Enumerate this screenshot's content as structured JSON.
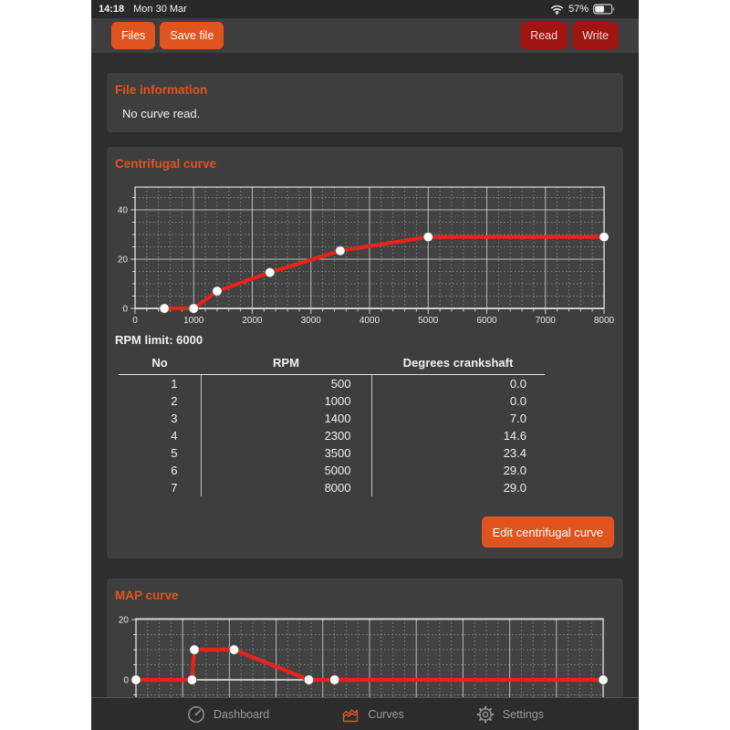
{
  "status_bar": {
    "time": "14:18",
    "date": "Mon 30 Mar",
    "battery_percent": "57%"
  },
  "toolbar": {
    "files_label": "Files",
    "save_file_label": "Save file",
    "read_label": "Read",
    "write_label": "Write"
  },
  "colors": {
    "accent_orange": "#e05420",
    "dark_red_button": "#9e1511",
    "curve_red": "#e8231a",
    "panel_bg": "#3e3e3e",
    "app_bg": "#2e2e2e"
  },
  "file_information": {
    "title": "File information",
    "message": "No curve read."
  },
  "centrifugal": {
    "title": "Centrifugal curve",
    "rpm_limit": "RPM limit: 6000",
    "edit_button_label": "Edit centrifugal curve",
    "table": {
      "headers": [
        "No",
        "RPM",
        "Degrees crankshaft"
      ],
      "rows": [
        [
          "1",
          "500",
          "0.0"
        ],
        [
          "2",
          "1000",
          "0.0"
        ],
        [
          "3",
          "1400",
          "7.0"
        ],
        [
          "4",
          "2300",
          "14.6"
        ],
        [
          "5",
          "3500",
          "23.4"
        ],
        [
          "6",
          "5000",
          "29.0"
        ],
        [
          "7",
          "8000",
          "29.0"
        ]
      ]
    },
    "chart_data": {
      "type": "line",
      "title": "Centrifugal curve",
      "x": [
        500,
        1000,
        1400,
        2300,
        3500,
        5000,
        8000
      ],
      "values": [
        0.0,
        0.0,
        7.0,
        14.6,
        23.4,
        29.0,
        29.0
      ],
      "xlim": [
        0,
        8000
      ],
      "ylim": [
        0,
        50
      ],
      "x_ticks": [
        0,
        1000,
        2000,
        3000,
        4000,
        5000,
        6000,
        7000,
        8000
      ],
      "y_ticks": [
        0,
        20,
        40
      ],
      "x_major_step": 1000,
      "x_minor_step": 200,
      "y_major_step": 20,
      "y_minor_step": 5,
      "grid": true,
      "legend": false,
      "line_color": "#e8231a",
      "marker_color": "#ffffff"
    }
  },
  "map": {
    "title": "MAP curve",
    "chart_data": {
      "type": "line",
      "title": "MAP curve",
      "x": [
        0,
        120,
        125,
        210,
        370,
        425,
        1000
      ],
      "values": [
        0,
        0,
        10,
        10,
        0,
        0,
        0
      ],
      "xlim": [
        0,
        1000
      ],
      "ylim": [
        -19,
        20.3
      ],
      "y_ticks": [
        0,
        20
      ],
      "x_major_step": 100,
      "x_minor_step": 25,
      "y_major_step": 20,
      "y_minor_step": 5,
      "grid": true,
      "legend": false,
      "x_axis_labels_visible": false,
      "line_color": "#e8231a",
      "marker_color": "#ffffff"
    }
  },
  "tab_bar": {
    "items": [
      {
        "id": "dashboard",
        "label": "Dashboard",
        "active": false
      },
      {
        "id": "curves",
        "label": "Curves",
        "active": true
      },
      {
        "id": "settings",
        "label": "Settings",
        "active": false
      }
    ]
  }
}
